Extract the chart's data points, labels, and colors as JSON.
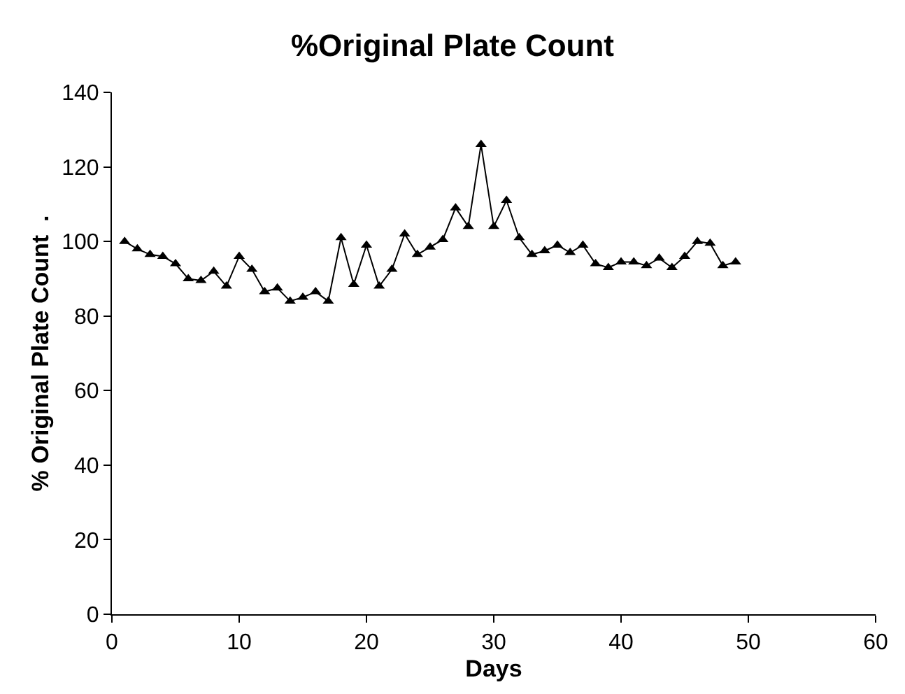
{
  "chart_data": {
    "type": "line",
    "title": "%Original Plate Count",
    "xlabel": "Days",
    "ylabel": "% Original Plate Count  .",
    "x": [
      1,
      2,
      3,
      4,
      5,
      6,
      7,
      8,
      9,
      10,
      11,
      12,
      13,
      14,
      15,
      16,
      17,
      18,
      19,
      20,
      21,
      22,
      23,
      24,
      25,
      26,
      27,
      28,
      29,
      30,
      31,
      32,
      33,
      34,
      35,
      36,
      37,
      38,
      39,
      40,
      41,
      42,
      43,
      44,
      45,
      46,
      47,
      48,
      49
    ],
    "series": [
      {
        "color": "#000000",
        "values": [
          100,
          98,
          96.5,
          96,
          94,
          90,
          89.5,
          92,
          88,
          96,
          92.5,
          86.5,
          87.5,
          84,
          85,
          86.5,
          84,
          101,
          88.5,
          99,
          88,
          92.5,
          102,
          96.5,
          98.5,
          100.5,
          109,
          104,
          126,
          104,
          111,
          101,
          96.5,
          97.5,
          99,
          97,
          99,
          94,
          93,
          94.5,
          94.5,
          93.5,
          95.5,
          93,
          96,
          100,
          99.5,
          93.5,
          94.5
        ]
      }
    ],
    "xlim": [
      0,
      60
    ],
    "xticks": [
      0,
      10,
      20,
      30,
      40,
      50,
      60
    ],
    "ylim": [
      0,
      140
    ],
    "yticks": [
      0,
      20,
      40,
      60,
      80,
      100,
      120,
      140
    ],
    "grid": false,
    "legend": false,
    "marker": "triangle",
    "line_style": "solid"
  }
}
